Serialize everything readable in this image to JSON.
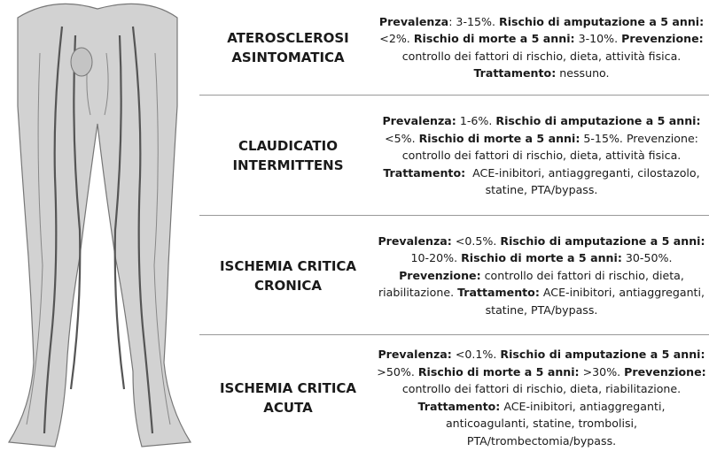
{
  "rows": [
    {
      "title": [
        "ATEROSCLEROSI",
        "ASINTOMATICA"
      ],
      "description": [
        {
          "text": "Prevalenza",
          "bold": true
        },
        {
          "text": ": 3-15%. ",
          "bold": false
        },
        {
          "text": "Rischio di amputazione a 5 anni:",
          "bold": true
        },
        {
          "text": " <2%. ",
          "bold": false
        },
        {
          "text": "Rischio di morte a 5 anni:",
          "bold": true
        },
        {
          "text": " 3-10%. ",
          "bold": false
        },
        {
          "text": "Prevenzione:",
          "bold": true
        },
        {
          "text": " controllo dei fattori di rischio, dieta, attività fisica. ",
          "bold": false
        },
        {
          "text": "Trattamento:",
          "bold": true
        },
        {
          "text": " nessuno.",
          "bold": false
        }
      ]
    },
    {
      "title": [
        "CLAUDICATIO",
        "INTERMITTENS"
      ],
      "description": [
        {
          "text": "Prevalenza:",
          "bold": true
        },
        {
          "text": " 1-6%. ",
          "bold": false
        },
        {
          "text": "Rischio di amputazione a 5 anni:",
          "bold": true
        },
        {
          "text": " <5%. ",
          "bold": false
        },
        {
          "text": "Rischio di morte a 5 anni:",
          "bold": true
        },
        {
          "text": " 5-15%. ",
          "bold": false
        },
        {
          "text": "Prevenzione:",
          "bold": false
        },
        {
          "text": " controllo dei fattori di rischio, dieta, attività fisica. ",
          "bold": false
        },
        {
          "text": "Trattamento:",
          "bold": true
        },
        {
          "text": "  ACE-inibitori, antiaggreganti, cilostazolo, statine, PTA/bypass.",
          "bold": false
        }
      ]
    },
    {
      "title": [
        "ISCHEMIA CRITICA",
        "CRONICA"
      ],
      "description": [
        {
          "text": "Prevalenza:",
          "bold": true
        },
        {
          "text": " <0.5%. ",
          "bold": false
        },
        {
          "text": "Rischio di amputazione a 5 anni:",
          "bold": true
        },
        {
          "text": " 10-20%. ",
          "bold": false
        },
        {
          "text": "Rischio di morte a 5 anni:",
          "bold": true
        },
        {
          "text": " 30-50%. ",
          "bold": false
        },
        {
          "text": "Prevenzione:",
          "bold": true
        },
        {
          "text": " controllo dei fattori di rischio, dieta, riabilitazione. ",
          "bold": false
        },
        {
          "text": "Trattamento:",
          "bold": true
        },
        {
          "text": " ACE-inibitori, antiaggreganti, statine, PTA/bypass.",
          "bold": false
        }
      ]
    },
    {
      "title": [
        "ISCHEMIA CRITICA",
        "ACUTA"
      ],
      "description": [
        {
          "text": "Prevalenza:",
          "bold": true
        },
        {
          "text": " <0.1%. ",
          "bold": false
        },
        {
          "text": "Rischio di amputazione a 5 anni:",
          "bold": true
        },
        {
          "text": " >50%. ",
          "bold": false
        },
        {
          "text": "Rischio di morte a 5 anni:",
          "bold": true
        },
        {
          "text": " >30%. ",
          "bold": false
        },
        {
          "text": "Prevenzione:",
          "bold": true
        },
        {
          "text": " controllo dei fattori di rischio, dieta, riabilitazione. ",
          "bold": false
        },
        {
          "text": "Trattamento:",
          "bold": true
        },
        {
          "text": " ACE-inibitori, antiaggreganti,  anticoagulanti, statine, trombolisi, PTA/trombectomia/bypass.",
          "bold": false
        }
      ]
    }
  ]
}
